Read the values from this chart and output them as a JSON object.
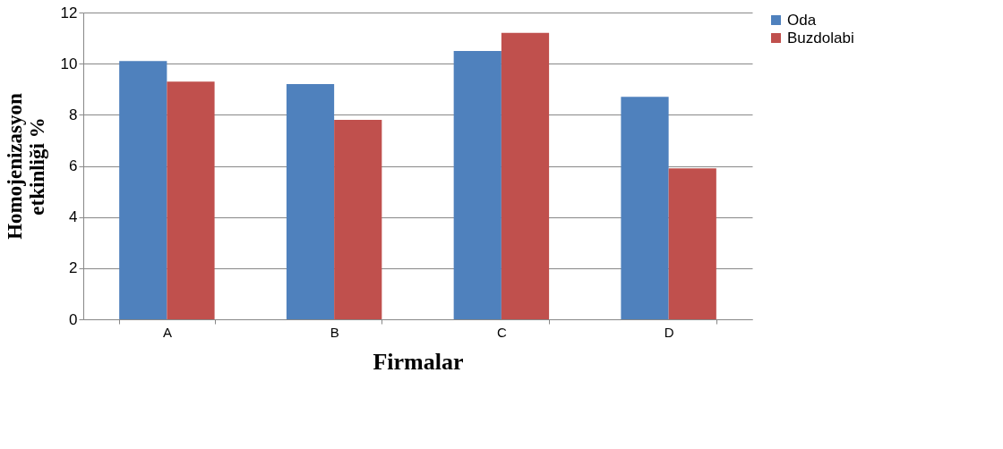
{
  "chart_data": {
    "type": "bar",
    "xlabel": "Firmalar",
    "ylabel": "Homojenizasyon\netkinliği %",
    "categories": [
      "A",
      "B",
      "C",
      "D"
    ],
    "series": [
      {
        "name": "Oda",
        "color": "#4f81bd",
        "values": [
          10.1,
          9.2,
          10.5,
          8.7
        ]
      },
      {
        "name": "Buzdolabi",
        "color": "#c0504d",
        "values": [
          9.3,
          7.8,
          11.2,
          5.9
        ]
      }
    ],
    "ylim": [
      0,
      12
    ],
    "yticks": [
      0,
      2,
      4,
      6,
      8,
      10,
      12
    ],
    "grid": "y",
    "legend": "right"
  }
}
